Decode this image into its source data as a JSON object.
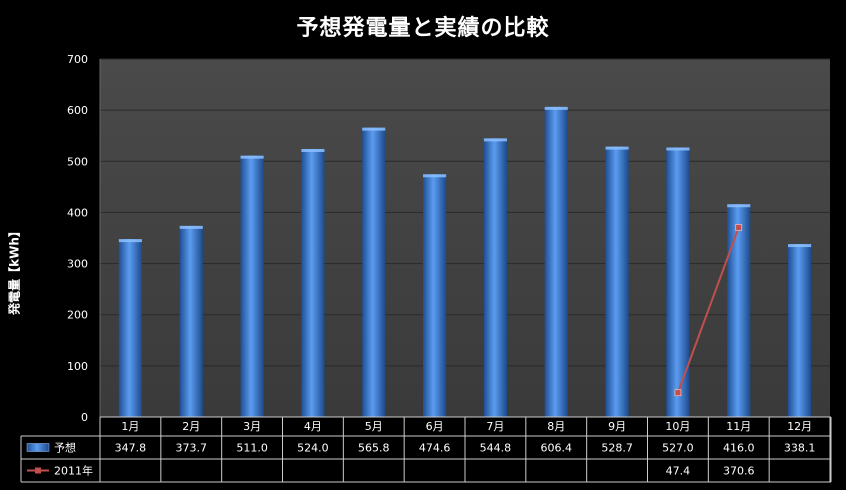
{
  "chart_data": {
    "type": "bar",
    "title": "予想発電量と実績の比較",
    "ylabel": "発電量【kWh】",
    "xlabel": "",
    "ylim": [
      0,
      700
    ],
    "yticks": [
      0,
      100,
      200,
      300,
      400,
      500,
      600,
      700
    ],
    "categories": [
      "1月",
      "2月",
      "3月",
      "4月",
      "5月",
      "6月",
      "7月",
      "8月",
      "9月",
      "10月",
      "11月",
      "12月"
    ],
    "grid": true,
    "legend": "data-table-left",
    "series": [
      {
        "name": "予想",
        "type": "bar",
        "color": "#3c7fd6",
        "values": [
          347.8,
          373.7,
          511.0,
          524.0,
          565.8,
          474.6,
          544.8,
          606.4,
          528.7,
          527.0,
          416.0,
          338.1
        ],
        "labels": [
          "347.8",
          "373.7",
          "511.0",
          "524.0",
          "565.8",
          "474.6",
          "544.8",
          "606.4",
          "528.7",
          "527.0",
          "416.0",
          "338.1"
        ]
      },
      {
        "name": "2011年",
        "type": "line",
        "color": "#c0504d",
        "values": [
          null,
          null,
          null,
          null,
          null,
          null,
          null,
          null,
          null,
          47.4,
          370.6,
          null
        ],
        "labels": [
          "",
          "",
          "",
          "",
          "",
          "",
          "",
          "",
          "",
          "47.4",
          "370.6",
          ""
        ]
      }
    ]
  }
}
